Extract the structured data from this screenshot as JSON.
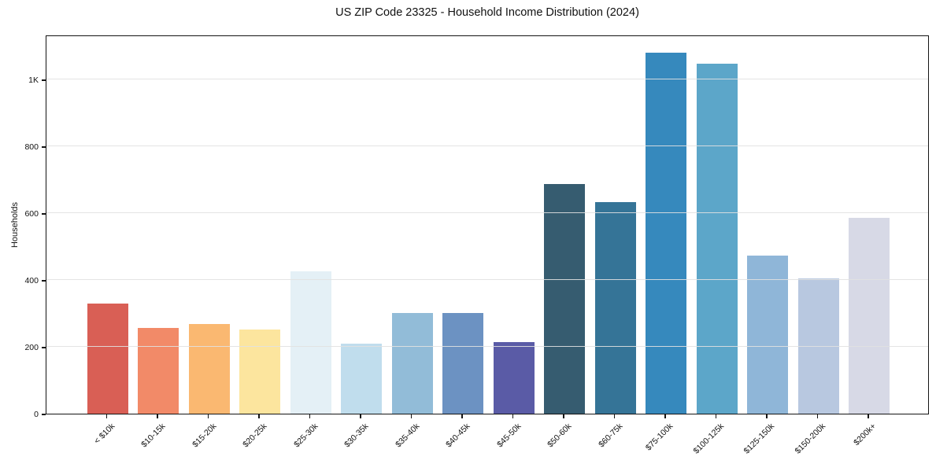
{
  "chart_data": {
    "type": "bar",
    "title": "US ZIP Code 23325 - Household Income Distribution (2024)",
    "xlabel": "",
    "ylabel": "Households",
    "categories": [
      "< $10k",
      "$10-15k",
      "$15-20k",
      "$20-25k",
      "$25-30k",
      "$30-35k",
      "$35-40k",
      "$40-45k",
      "$45-50k",
      "$50-60k",
      "$60-75k",
      "$75-100k",
      "$100-125k",
      "$125-150k",
      "$150-200k",
      "$200k+"
    ],
    "values": [
      330,
      256,
      268,
      252,
      425,
      210,
      301,
      301,
      215,
      687,
      633,
      1080,
      1048,
      473,
      404,
      586
    ],
    "bar_colors": [
      "#d95f55",
      "#f28a68",
      "#fab871",
      "#fce59e",
      "#e4f0f6",
      "#c0dded",
      "#92bcd8",
      "#6c92c2",
      "#5a5ba6",
      "#365c70",
      "#357497",
      "#3689bd",
      "#5ca6c9",
      "#8fb6d8",
      "#b8c8e0",
      "#d7d9e6"
    ],
    "ylim": [
      0,
      1134
    ],
    "yticks": {
      "values": [
        0,
        200,
        400,
        600,
        800,
        1000
      ],
      "labels": [
        "0",
        "200",
        "400",
        "600",
        "800",
        "1K"
      ]
    },
    "grid": "horizontal",
    "legend": "none",
    "background": "#ffffff"
  }
}
